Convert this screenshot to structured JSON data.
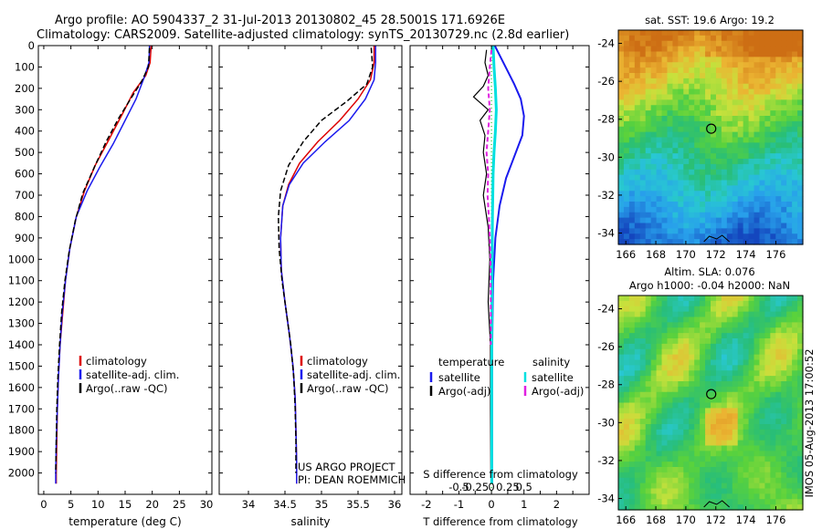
{
  "header": {
    "line1": "Argo profile: AO 5904337_2 31-Jul-2013 20130802_45 28.5001S 171.6926E",
    "line2": "Climatology: CARS2009. Satellite-adjusted climatology: synTS_20130729.nc (2.8d earlier)"
  },
  "side_text": "IMOS 05-Aug-2013 17:00:52",
  "project": {
    "line1": "US ARGO PROJECT",
    "line2": "PI: DEAN ROEMMICH"
  },
  "colors": {
    "climatology": "#dd0000",
    "satellite": "#1a1aee",
    "argo": "#000000",
    "salinity_satellite": "#00e0e0",
    "salinity_argo": "#e020e0",
    "zero_line": "#00bb00"
  },
  "chart_data": [
    {
      "type": "line",
      "name": "temperature",
      "xlabel": "temperature (deg C)",
      "xlim": [
        -1,
        31
      ],
      "ylim": [
        2100,
        0
      ],
      "xticks": [
        0,
        5,
        10,
        15,
        20,
        25,
        30
      ],
      "yticks": [
        0,
        100,
        200,
        300,
        400,
        500,
        600,
        700,
        800,
        900,
        1000,
        1100,
        1200,
        1300,
        1400,
        1500,
        1600,
        1700,
        1800,
        1900,
        2000
      ],
      "legend": [
        "climatology",
        "satellite-adj. clim.",
        "Argo(..raw -QC)"
      ],
      "series": [
        {
          "name": "climatology",
          "color": "#dd0000",
          "width": 1.5,
          "x": [
            19.8,
            19.6,
            18.8,
            16.5,
            14.5,
            12.0,
            9.5,
            7.5,
            6.0,
            4.8,
            4.0,
            3.5,
            3.0,
            2.7,
            2.5,
            2.4,
            2.3,
            2.3
          ],
          "y": [
            0,
            80,
            140,
            220,
            320,
            440,
            560,
            680,
            800,
            950,
            1100,
            1250,
            1400,
            1550,
            1700,
            1850,
            2000,
            2050
          ]
        },
        {
          "name": "satellite-adj. clim.",
          "color": "#1a1aee",
          "width": 1.5,
          "x": [
            19.5,
            19.4,
            18.5,
            17.0,
            15.0,
            12.8,
            10.3,
            8.0,
            6.0,
            4.8,
            4.0,
            3.4,
            3.0,
            2.7,
            2.5,
            2.3,
            2.2,
            2.2
          ],
          "y": [
            0,
            80,
            150,
            250,
            350,
            460,
            570,
            680,
            800,
            950,
            1100,
            1250,
            1400,
            1550,
            1700,
            1850,
            2000,
            2050
          ]
        },
        {
          "name": "Argo(..raw -QC)",
          "color": "#000000",
          "width": 1.5,
          "dash": "6,3",
          "x": [
            19.5,
            19.3,
            18.0,
            16.0,
            13.8,
            11.5,
            9.3,
            7.2,
            5.8,
            4.7,
            3.9,
            3.3,
            2.9,
            2.6,
            2.4,
            2.3,
            2.2
          ],
          "y": [
            10,
            100,
            170,
            250,
            340,
            450,
            570,
            690,
            820,
            960,
            1100,
            1250,
            1400,
            1550,
            1700,
            1850,
            2000
          ]
        }
      ]
    },
    {
      "type": "line",
      "name": "salinity",
      "xlabel": "salinity",
      "xlim": [
        33.6,
        36.1
      ],
      "ylim": [
        2100,
        0
      ],
      "xticks": [
        34,
        34.5,
        35,
        35.5,
        36
      ],
      "legend": [
        "climatology",
        "satellite-adj. clim.",
        "Argo(..raw -QC)"
      ],
      "series": [
        {
          "name": "climatology",
          "color": "#dd0000",
          "width": 1.5,
          "x": [
            35.72,
            35.72,
            35.67,
            35.5,
            35.25,
            34.95,
            34.7,
            34.55,
            34.47,
            34.44,
            34.45,
            34.5,
            34.56,
            34.61,
            34.64,
            34.65,
            34.66,
            34.66
          ],
          "y": [
            0,
            80,
            160,
            250,
            350,
            450,
            550,
            650,
            750,
            900,
            1050,
            1200,
            1350,
            1500,
            1650,
            1800,
            1950,
            2050
          ]
        },
        {
          "name": "satellite-adj. clim.",
          "color": "#1a1aee",
          "width": 1.5,
          "x": [
            35.74,
            35.74,
            35.72,
            35.6,
            35.38,
            35.05,
            34.75,
            34.56,
            34.47,
            34.44,
            34.45,
            34.5,
            34.56,
            34.61,
            34.64,
            34.65,
            34.66,
            34.66
          ],
          "y": [
            0,
            80,
            160,
            250,
            350,
            450,
            550,
            650,
            750,
            900,
            1050,
            1200,
            1350,
            1500,
            1650,
            1800,
            1950,
            2050
          ]
        },
        {
          "name": "Argo(..raw -QC)",
          "color": "#000000",
          "width": 1.5,
          "dash": "6,3",
          "x": [
            35.68,
            35.7,
            35.62,
            35.35,
            35.0,
            34.75,
            34.55,
            34.44,
            34.41,
            34.42,
            34.46,
            34.52,
            34.58,
            34.62,
            34.64,
            34.65,
            34.65
          ],
          "y": [
            10,
            100,
            180,
            260,
            350,
            450,
            560,
            680,
            800,
            950,
            1100,
            1250,
            1400,
            1550,
            1700,
            1850,
            2000
          ]
        }
      ]
    },
    {
      "type": "line",
      "name": "difference",
      "xlabel": "T difference from climatology",
      "xlabel_top": "S difference from climatology",
      "xlim": [
        -2.5,
        3.0
      ],
      "ylim": [
        2100,
        0
      ],
      "xticks": [
        -2,
        -1.5,
        -1,
        -0.5,
        0,
        0.5,
        1,
        1.5,
        2,
        2.5
      ],
      "xtick_labels": [
        "-2",
        "",
        "-1",
        "",
        "0",
        "",
        "1",
        "",
        "2",
        ""
      ],
      "sticks": [
        -0.5,
        -0.25,
        0,
        0.25,
        0.5
      ],
      "stick_labels": [
        "-0.5",
        "-0.25",
        "0",
        "0.25",
        "0.5"
      ],
      "legend": {
        "temperature_header": "temperature",
        "salinity_header": "salinity",
        "temperature": [
          "satellite",
          "Argo(-adj)"
        ],
        "salinity": [
          "satellite",
          "Argo(-adj)"
        ]
      },
      "series": [
        {
          "name": "temperature satellite",
          "color": "#1a1aee",
          "width": 2,
          "x": [
            0.1,
            0.3,
            0.5,
            0.7,
            0.9,
            1.0,
            0.95,
            0.7,
            0.45,
            0.25,
            0.12,
            0.05,
            0.03,
            0.02,
            0.02,
            0.02
          ],
          "y": [
            0,
            60,
            120,
            180,
            250,
            330,
            420,
            520,
            620,
            750,
            900,
            1100,
            1300,
            1500,
            1800,
            2050
          ]
        },
        {
          "name": "temperature Argo(-adj)",
          "color": "#000000",
          "width": 1.2,
          "x": [
            -0.15,
            -0.2,
            -0.1,
            -0.25,
            -0.55,
            -0.1,
            -0.35,
            -0.2,
            -0.25,
            -0.15,
            -0.25,
            -0.1,
            -0.05,
            -0.1,
            -0.03,
            -0.03,
            -0.02
          ],
          "y": [
            20,
            80,
            140,
            190,
            240,
            300,
            350,
            420,
            500,
            600,
            700,
            850,
            1000,
            1200,
            1400,
            1700,
            2000
          ]
        },
        {
          "name": "salinity satellite",
          "color": "#00e0e0",
          "width": 3,
          "x": [
            0.05,
            0.08,
            0.12,
            0.15,
            0.12,
            0.08,
            0.05,
            0.03,
            0.02,
            0.01,
            0.01
          ],
          "y": [
            0,
            100,
            200,
            300,
            400,
            500,
            600,
            800,
            1000,
            1500,
            2050
          ]
        },
        {
          "name": "salinity Argo(-adj)",
          "color": "#e020e0",
          "width": 2,
          "dash": "5,3",
          "x": [
            0.0,
            -0.05,
            -0.1,
            -0.05,
            -0.1,
            -0.15,
            -0.1,
            -0.12,
            -0.08,
            -0.05,
            -0.03,
            -0.02,
            -0.02
          ],
          "y": [
            20,
            100,
            200,
            300,
            400,
            500,
            600,
            700,
            800,
            900,
            1000,
            1200,
            1400
          ]
        }
      ]
    },
    {
      "type": "heatmap",
      "name": "sst_map",
      "title": "sat. SST: 19.6 Argo: 19.2",
      "xlim": [
        165.5,
        177.8
      ],
      "ylim": [
        -34.6,
        -23.3
      ],
      "xticks": [
        166,
        168,
        170,
        172,
        174,
        176
      ],
      "yticks": [
        -24,
        -26,
        -28,
        -30,
        -32,
        -34
      ],
      "marker": {
        "lon": 171.69,
        "lat": -28.5
      }
    },
    {
      "type": "heatmap",
      "name": "sla_map",
      "title_line1": "Altim. SLA: 0.076",
      "title_line2": "Argo h1000: -0.04 h2000: NaN",
      "xlim": [
        165.5,
        177.8
      ],
      "ylim": [
        -34.6,
        -23.3
      ],
      "xticks": [
        166,
        168,
        170,
        172,
        174,
        176
      ],
      "yticks": [
        -24,
        -26,
        -28,
        -30,
        -32,
        -34
      ],
      "marker": {
        "lon": 171.69,
        "lat": -28.5
      }
    }
  ]
}
